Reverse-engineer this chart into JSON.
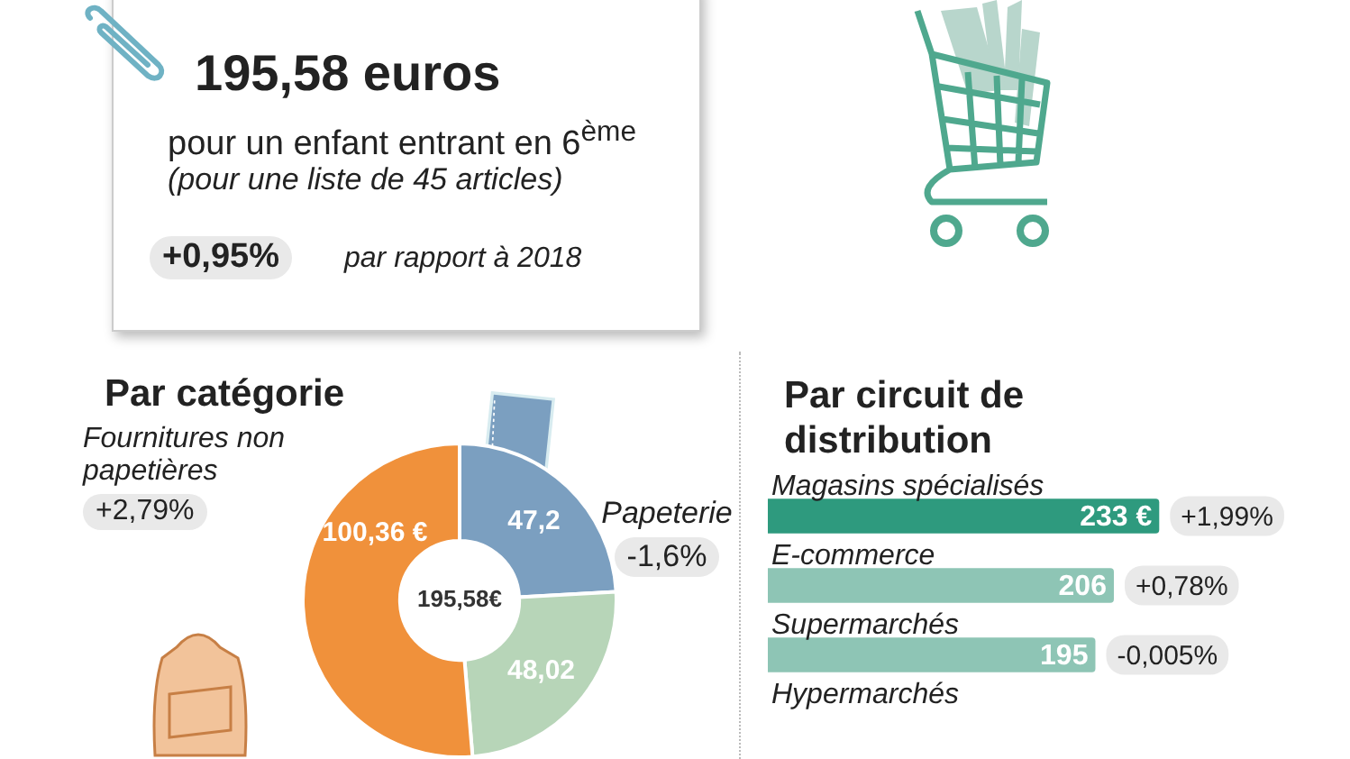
{
  "chart_data": [
    {
      "type": "other",
      "title": "195,58 euros",
      "subtitle": "pour un enfant entrant en 6$^{ème}$",
      "annotations": [
        "(pour une liste de 45 articles)",
        "+0,95%",
        "par rapport à 2018"
      ]
    },
    {
      "type": "donut",
      "title": "Par catégorie",
      "categories": [
        "Papeterie",
        null,
        "Fournitures non papetières"
      ],
      "values": [
        47.2,
        48.02,
        100.36
      ],
      "colors": [
        "#7b9fc0",
        "#b7d5b8",
        "#f0913b"
      ],
      "value_labels": [
        "47,2",
        "48,02",
        "100,36 €"
      ],
      "annotations": [
        "+2,79%",
        "-1,6%",
        "195,58€"
      ]
    },
    {
      "type": "bar",
      "orientation": "horizontal",
      "title": "Par circuit de distribution",
      "categories": [
        "Magasins spécialisés",
        "E-commerce",
        "Supermarchés",
        "Hypermarchés"
      ],
      "values": [
        233,
        206,
        195,
        null
      ],
      "colors": [
        "#2e9a7e",
        "#8ec5b5",
        "#8ec5b5",
        "#8ec5b5"
      ],
      "value_labels": [
        "233 €",
        "206",
        "195",
        null
      ],
      "annotations": [
        "+1,99%",
        "+0,78%",
        "-0,005%"
      ],
      "tick_labels": false
    }
  ]
}
